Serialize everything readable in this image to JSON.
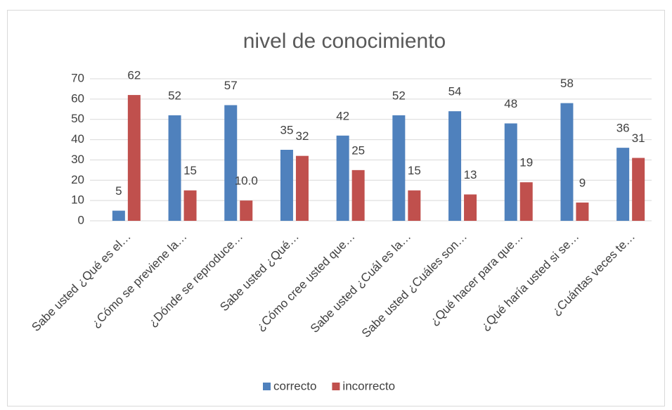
{
  "chart_data": {
    "type": "bar",
    "title": "nivel de conocimiento",
    "categories": [
      "Sabe usted ¿Qué es el…",
      "¿Cómo se previene la…",
      "¿Dónde se reproduce…",
      "Sabe usted ¿Qué…",
      "¿Cómo cree usted que…",
      "Sabe usted ¿Cuál es la…",
      "Sabe usted ¿Cuáles son…",
      "¿Qué hacer para que…",
      "¿Qué haría usted si se…",
      "¿Cuántas veces te…"
    ],
    "series": [
      {
        "name": "correcto",
        "color": "#4f81bd",
        "values": [
          5,
          52,
          57,
          35,
          42,
          52,
          54,
          48,
          58,
          36
        ]
      },
      {
        "name": "incorrecto",
        "color": "#c0504d",
        "values": [
          62,
          15,
          10,
          32,
          25,
          15,
          13,
          19,
          9,
          31
        ],
        "value_labels": [
          "62",
          "15",
          "10.0",
          "32",
          "25",
          "15",
          "13",
          "19",
          "9",
          "31"
        ]
      }
    ],
    "ylim": [
      0,
      70
    ],
    "yticks": [
      0,
      10,
      20,
      30,
      40,
      50,
      60,
      70
    ],
    "grid": true,
    "legend": "bottom"
  }
}
